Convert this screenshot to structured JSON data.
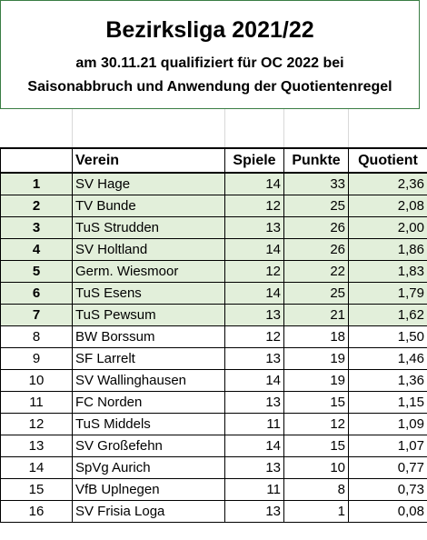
{
  "header": {
    "title": "Bezirksliga 2021/22",
    "line1": "am 30.11.21 qualifiziert für OC 2022 bei",
    "line2": "Saisonabbruch und Anwendung der Quotientenregel"
  },
  "table": {
    "columns": {
      "rank": "",
      "club": "Verein",
      "games": "Spiele",
      "points": "Punkte",
      "quotient": "Quotient"
    },
    "rows": [
      {
        "rank": "1",
        "club": "SV Hage",
        "games": "14",
        "points": "33",
        "quotient": "2,36"
      },
      {
        "rank": "2",
        "club": "TV Bunde",
        "games": "12",
        "points": "25",
        "quotient": "2,08"
      },
      {
        "rank": "3",
        "club": "TuS Strudden",
        "games": "13",
        "points": "26",
        "quotient": "2,00"
      },
      {
        "rank": "4",
        "club": "SV Holtland",
        "games": "14",
        "points": "26",
        "quotient": "1,86"
      },
      {
        "rank": "5",
        "club": "Germ. Wiesmoor",
        "games": "12",
        "points": "22",
        "quotient": "1,83"
      },
      {
        "rank": "6",
        "club": "TuS Esens",
        "games": "14",
        "points": "25",
        "quotient": "1,79"
      },
      {
        "rank": "7",
        "club": "TuS Pewsum",
        "games": "13",
        "points": "21",
        "quotient": "1,62"
      },
      {
        "rank": "8",
        "club": "BW Borssum",
        "games": "12",
        "points": "18",
        "quotient": "1,50"
      },
      {
        "rank": "9",
        "club": "SF Larrelt",
        "games": "13",
        "points": "19",
        "quotient": "1,46"
      },
      {
        "rank": "10",
        "club": "SV Wallinghausen",
        "games": "14",
        "points": "19",
        "quotient": "1,36"
      },
      {
        "rank": "11",
        "club": "FC Norden",
        "games": "13",
        "points": "15",
        "quotient": "1,15"
      },
      {
        "rank": "12",
        "club": "TuS Middels",
        "games": "11",
        "points": "12",
        "quotient": "1,09"
      },
      {
        "rank": "13",
        "club": "SV Großefehn",
        "games": "14",
        "points": "15",
        "quotient": "1,07"
      },
      {
        "rank": "14",
        "club": "SpVg Aurich",
        "games": "13",
        "points": "10",
        "quotient": "0,77"
      },
      {
        "rank": "15",
        "club": "VfB Uplnegen",
        "games": "11",
        "points": "8",
        "quotient": "0,73"
      },
      {
        "rank": "16",
        "club": "SV Frisia Loga",
        "games": "13",
        "points": "1",
        "quotient": "0,08"
      }
    ]
  },
  "colors": {
    "qualified_fill": "#e2efda",
    "header_border": "#3a7d44"
  }
}
